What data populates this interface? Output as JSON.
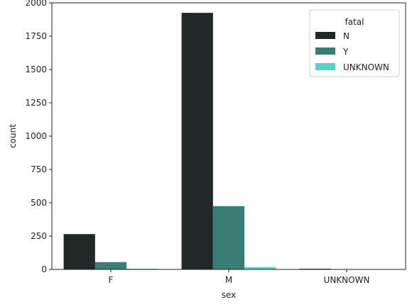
{
  "chart_data": {
    "type": "bar",
    "xlabel": "sex",
    "ylabel": "count",
    "categories": [
      "F",
      "M",
      "UNKNOWN"
    ],
    "ylim": [
      0,
      2000
    ],
    "yticks": [
      0,
      250,
      500,
      750,
      1000,
      1250,
      1500,
      1750,
      2000
    ],
    "legend": {
      "title": "fatal",
      "placement": "top-right"
    },
    "series": [
      {
        "name": "N",
        "color": "#222828",
        "values": [
          265,
          1925,
          5
        ]
      },
      {
        "name": "Y",
        "color": "#3a7d74",
        "values": [
          55,
          475,
          1
        ]
      },
      {
        "name": "UNKNOWN",
        "color": "#55d3c7",
        "values": [
          5,
          18,
          0
        ]
      }
    ],
    "grid": false
  }
}
